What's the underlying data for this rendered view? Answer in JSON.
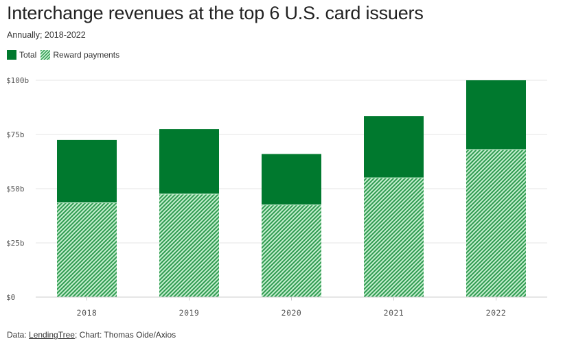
{
  "title": "Interchange revenues at the top 6 U.S. card issuers",
  "subtitle": "Annually; 2018-2022",
  "legend": {
    "total_label": "Total",
    "reward_label": "Reward payments"
  },
  "footer": {
    "data_prefix": "Data: ",
    "source": "LendingTree",
    "chart_credit": "; Chart: Thomas Oide/Axios"
  },
  "colors": {
    "total": "#00792e",
    "reward_stripe_dark": "#2f9a50",
    "reward_stripe_light": "#c5efcf",
    "grid": "#e6e6e6",
    "axis": "#cccccc"
  },
  "chart_data": {
    "type": "bar",
    "categories": [
      "2018",
      "2019",
      "2020",
      "2021",
      "2022"
    ],
    "series": [
      {
        "name": "Total",
        "values": [
          72.5,
          77.5,
          66,
          83.5,
          100
        ]
      },
      {
        "name": "Reward payments",
        "values": [
          43.5,
          47.5,
          42.5,
          55,
          68
        ]
      }
    ],
    "ylim": [
      0,
      100
    ],
    "yticks": [
      0,
      25,
      50,
      75,
      100
    ],
    "ytick_labels": [
      "$0",
      "$25b",
      "$50b",
      "$75b",
      "$100b"
    ],
    "grid": true,
    "legend_position": "top-left"
  }
}
